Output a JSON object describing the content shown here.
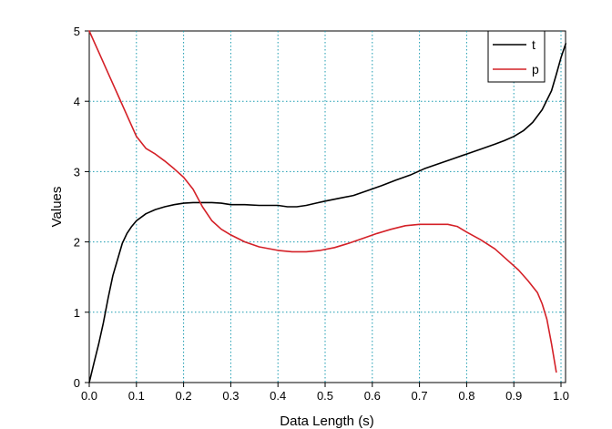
{
  "chart_data": {
    "type": "line",
    "title": "",
    "xlabel": "Data Length (s)",
    "ylabel": "Values",
    "xlim": [
      0.0,
      1.0
    ],
    "ylim": [
      0,
      5
    ],
    "xticks": [
      "0.0",
      "0.1",
      "0.2",
      "0.3",
      "0.4",
      "0.5",
      "0.6",
      "0.7",
      "0.8",
      "0.9",
      "1.0"
    ],
    "yticks": [
      "0",
      "1",
      "2",
      "3",
      "4",
      "5"
    ],
    "grid": true,
    "grid_style": "dotted",
    "legend_position": "top-right",
    "series": [
      {
        "name": "t",
        "color": "#000000",
        "x": [
          0.0,
          0.01,
          0.02,
          0.03,
          0.04,
          0.05,
          0.06,
          0.07,
          0.08,
          0.09,
          0.1,
          0.12,
          0.14,
          0.16,
          0.18,
          0.2,
          0.22,
          0.24,
          0.26,
          0.28,
          0.3,
          0.33,
          0.36,
          0.4,
          0.42,
          0.44,
          0.46,
          0.48,
          0.5,
          0.53,
          0.56,
          0.59,
          0.62,
          0.65,
          0.68,
          0.71,
          0.74,
          0.77,
          0.8,
          0.83,
          0.86,
          0.88,
          0.9,
          0.92,
          0.94,
          0.96,
          0.98,
          0.99,
          1.0,
          1.01
        ],
        "y": [
          0.0,
          0.28,
          0.55,
          0.85,
          1.2,
          1.52,
          1.75,
          1.98,
          2.12,
          2.22,
          2.3,
          2.4,
          2.46,
          2.5,
          2.53,
          2.55,
          2.56,
          2.56,
          2.56,
          2.55,
          2.53,
          2.53,
          2.52,
          2.52,
          2.5,
          2.5,
          2.52,
          2.55,
          2.58,
          2.62,
          2.66,
          2.73,
          2.8,
          2.88,
          2.95,
          3.04,
          3.11,
          3.18,
          3.25,
          3.32,
          3.39,
          3.44,
          3.5,
          3.58,
          3.7,
          3.88,
          4.15,
          4.38,
          4.62,
          4.82
        ]
      },
      {
        "name": "p",
        "color": "#d42027",
        "x": [
          0.0,
          0.02,
          0.04,
          0.06,
          0.08,
          0.1,
          0.12,
          0.14,
          0.16,
          0.18,
          0.2,
          0.22,
          0.24,
          0.26,
          0.28,
          0.3,
          0.33,
          0.36,
          0.4,
          0.43,
          0.46,
          0.49,
          0.52,
          0.55,
          0.58,
          0.61,
          0.64,
          0.67,
          0.7,
          0.73,
          0.76,
          0.78,
          0.8,
          0.83,
          0.86,
          0.89,
          0.91,
          0.93,
          0.95,
          0.96,
          0.97,
          0.98,
          0.99
        ],
        "y": [
          5.0,
          4.7,
          4.4,
          4.1,
          3.8,
          3.5,
          3.33,
          3.25,
          3.15,
          3.04,
          2.92,
          2.75,
          2.5,
          2.3,
          2.18,
          2.1,
          2.0,
          1.93,
          1.88,
          1.86,
          1.86,
          1.88,
          1.92,
          1.98,
          2.05,
          2.12,
          2.18,
          2.23,
          2.25,
          2.25,
          2.25,
          2.22,
          2.14,
          2.03,
          1.9,
          1.72,
          1.6,
          1.45,
          1.28,
          1.12,
          0.9,
          0.55,
          0.15
        ]
      }
    ]
  }
}
